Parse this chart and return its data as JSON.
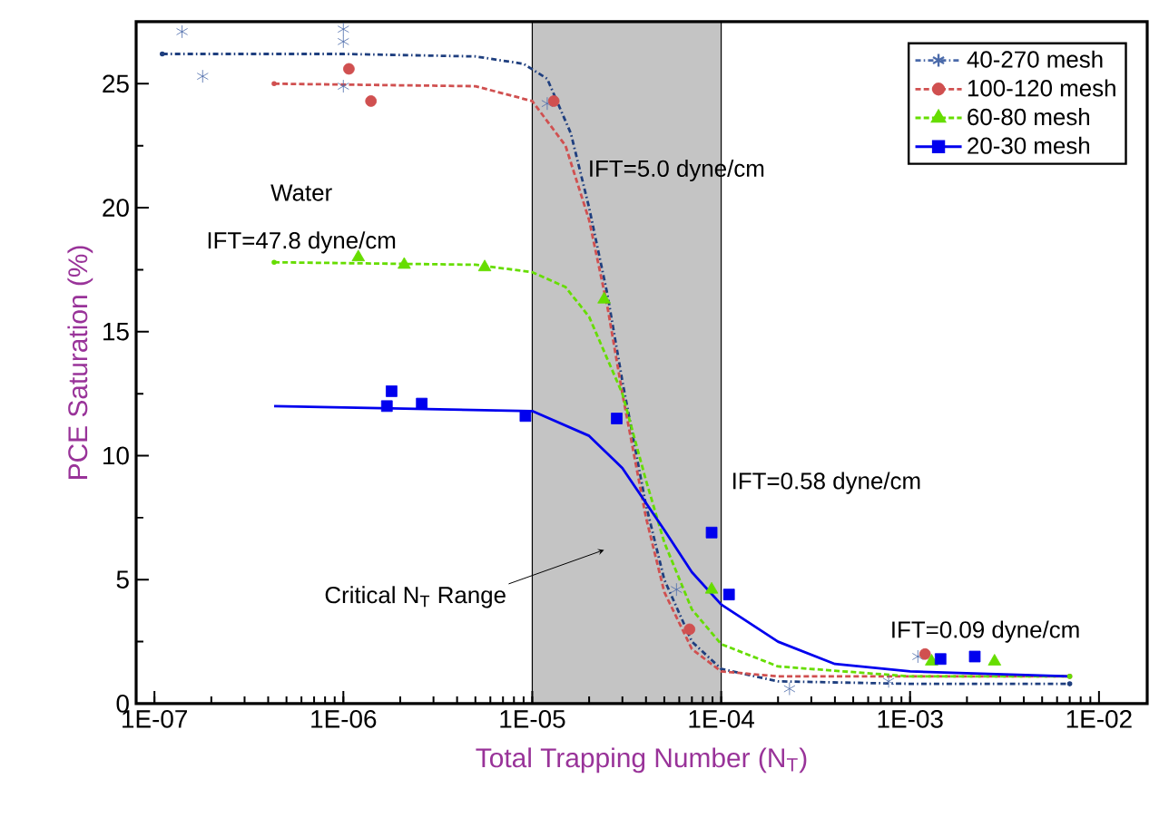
{
  "chart_data": {
    "type": "scatter",
    "xlabel": "Total Trapping Number (N$_{T}$)",
    "ylabel": "PCE Saturation (%)",
    "log": "x",
    "xlim": [
      8e-08,
      0.018
    ],
    "ylim": [
      0,
      27.5
    ],
    "xticks": [
      {
        "value": 1e-07,
        "label": "1E-07"
      },
      {
        "value": 1e-06,
        "label": "1E-06"
      },
      {
        "value": 1e-05,
        "label": "1E-05"
      },
      {
        "value": 0.0001,
        "label": "1E-04"
      },
      {
        "value": 0.001,
        "label": "1E-03"
      },
      {
        "value": 0.01,
        "label": "1E-02"
      }
    ],
    "yticks": [
      0,
      5,
      10,
      15,
      20,
      25
    ],
    "legend": "top right",
    "grid": false,
    "bands": [
      {
        "axis": "x",
        "from": 1e-05,
        "to": 0.0001,
        "label": "Critical N$_{T}$ Range",
        "color": "#c4c4c4"
      }
    ],
    "annotations": [
      "Water",
      "IFT=47.8 dyne/cm",
      "IFT=5.0 dyne/cm",
      "IFT=0.58 dyne/cm",
      "IFT=0.09 dyne/cm"
    ],
    "series": [
      {
        "name": "40-270 mesh",
        "marker": "cross",
        "line_style": "dashdot",
        "color": "#4a6aaa",
        "x": [
          1.4e-07,
          1.8e-07,
          1e-06,
          1e-06,
          1e-06,
          1.2e-05,
          5.8e-05,
          0.00023,
          0.00077,
          0.0011
        ],
        "values": [
          27.1,
          25.3,
          27.2,
          26.7,
          24.9,
          24.2,
          4.6,
          0.6,
          0.9,
          1.9
        ]
      },
      {
        "name": "100-120 mesh",
        "marker": "circle",
        "line_style": "dashed",
        "color": "#d05050",
        "x": [
          1.07e-06,
          1.4e-06,
          1.3e-05,
          6.8e-05,
          0.0012
        ],
        "values": [
          25.6,
          24.3,
          24.3,
          3.0,
          2.0
        ]
      },
      {
        "name": "60-80 mesh",
        "marker": "triangle",
        "line_style": "dashed",
        "color": "#66dd00",
        "x": [
          1.2e-06,
          2.1e-06,
          5.6e-06,
          2.4e-05,
          8.9e-05,
          0.0013,
          0.0028
        ],
        "values": [
          18.0,
          17.7,
          17.6,
          16.3,
          4.6,
          1.7,
          1.7
        ]
      },
      {
        "name": "20-30 mesh",
        "marker": "square",
        "line_style": "solid",
        "color": "#0000ee",
        "x": [
          1.8e-06,
          1.7e-06,
          2.6e-06,
          9.2e-06,
          2.8e-05,
          8.9e-05,
          0.00011,
          0.00145,
          0.0022
        ],
        "values": [
          12.6,
          12.0,
          12.1,
          11.6,
          11.5,
          6.9,
          4.4,
          1.8,
          1.9
        ]
      },
      {
        "type": "line",
        "line_style": "dashdot",
        "marker": "none",
        "color": "#1f3f7f",
        "x": [
          1.1e-07,
          1e-06,
          5e-06,
          9e-06,
          1.2e-05,
          1.6e-05,
          2e-05,
          2.5e-05,
          3e-05,
          4e-05,
          5e-05,
          7e-05,
          0.0001,
          0.0002,
          0.001,
          0.007
        ],
        "values": [
          26.2,
          26.2,
          26.1,
          25.8,
          25.2,
          23,
          20,
          16.5,
          13,
          8,
          5,
          2.5,
          1.4,
          0.9,
          0.8,
          0.8
        ]
      },
      {
        "type": "line",
        "line_style": "dashed",
        "marker": "none",
        "color": "#d05050",
        "x": [
          4.3e-07,
          5e-06,
          1e-05,
          1.5e-05,
          2e-05,
          2.5e-05,
          3e-05,
          4e-05,
          5e-05,
          7e-05,
          0.0001,
          0.0002,
          0.001,
          0.007
        ],
        "values": [
          25,
          24.9,
          24.3,
          22.5,
          19.5,
          16,
          12.5,
          7.5,
          4.5,
          2.2,
          1.3,
          1.1,
          1.1,
          1.1
        ]
      },
      {
        "type": "line",
        "line_style": "dashed",
        "marker": "none",
        "color": "#66dd00",
        "x": [
          4.3e-07,
          5e-06,
          1e-05,
          1.5e-05,
          2e-05,
          3e-05,
          4e-05,
          5e-05,
          7e-05,
          0.0001,
          0.0002,
          0.001,
          0.007
        ],
        "values": [
          17.8,
          17.7,
          17.4,
          16.8,
          15.6,
          12.5,
          9,
          6.5,
          3.8,
          2.4,
          1.5,
          1.1,
          1.1
        ]
      },
      {
        "type": "line",
        "line_style": "solid",
        "marker": "none",
        "color": "#0000ee",
        "x": [
          4.3e-07,
          1e-05,
          2e-05,
          3e-05,
          5e-05,
          7e-05,
          0.0001,
          0.0002,
          0.0004,
          0.001,
          0.007
        ],
        "values": [
          12.0,
          11.8,
          10.8,
          9.5,
          7,
          5.3,
          4,
          2.5,
          1.6,
          1.3,
          1.1
        ]
      }
    ]
  }
}
